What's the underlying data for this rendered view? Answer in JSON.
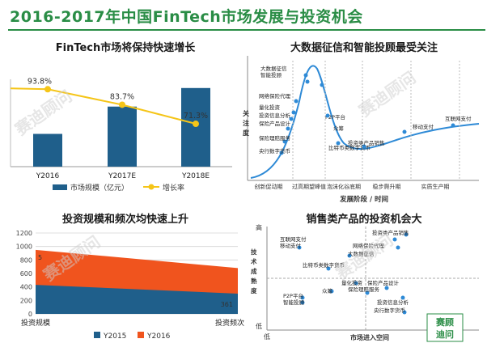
{
  "page": {
    "title": "2016-2017年中国FinTech市场发展与投资机会"
  },
  "watermark": {
    "text": "赛迪顾问"
  },
  "logo": {
    "line1": "赛顾",
    "line2": "迪问"
  },
  "colors": {
    "green": "#2a8d46",
    "blue": "#1f5f8b",
    "orange": "#f0541e",
    "yellow": "#f5c518",
    "ltblue": "#2e8ad6"
  },
  "chart_data": [
    {
      "id": "fintech_growth",
      "type": "bar",
      "title": "FinTech市场将保持快速增长",
      "categories": [
        "Y2016",
        "Y2017E",
        "Y2018E"
      ],
      "series": [
        {
          "name": "市场规模（亿元）",
          "kind": "bar",
          "values": [
            30,
            55,
            72
          ]
        },
        {
          "name": "增长率",
          "kind": "line",
          "values": [
            93.8,
            83.7,
            71.3
          ],
          "labels": [
            "93.8%",
            "83.7%",
            "71.3%"
          ]
        }
      ],
      "legend": [
        "市场规模（亿元）",
        "增长率"
      ]
    },
    {
      "id": "investment_area",
      "type": "area",
      "title": "投资规模和频次均快速上升",
      "categories": [
        "投资规模",
        "投资频次"
      ],
      "yticks": [
        0,
        200,
        400,
        600,
        800,
        1000,
        1200
      ],
      "ylim": [
        0,
        1200
      ],
      "series": [
        {
          "name": "Y2015",
          "values": [
            430,
            300
          ]
        },
        {
          "name": "Y2016",
          "values": [
            950,
            680
          ]
        }
      ],
      "annotations": [
        "5",
        "361"
      ],
      "legend": [
        "Y2015",
        "Y2016"
      ]
    }
  ],
  "hype": {
    "title": "大数据征信和智能投顾最受关注",
    "y_axis": "关注度",
    "x_axis": "发展阶段 / 时间",
    "points": [
      {
        "label": "大数据征信",
        "role": "top"
      },
      {
        "label": "智能投顾",
        "role": "top"
      },
      {
        "label": "网络保险代理",
        "role": "left"
      },
      {
        "label": "量化投资",
        "role": "left"
      },
      {
        "label": "投资信息分析",
        "role": "left"
      },
      {
        "label": "保险产品设计",
        "role": "left"
      },
      {
        "label": "保险理赔服务",
        "role": "left"
      },
      {
        "label": "央行数字货币",
        "role": "left"
      },
      {
        "label": "P2P平台",
        "role": "valley"
      },
      {
        "label": "众筹",
        "role": "valley"
      },
      {
        "label": "比特币类数字货币",
        "role": "valley"
      },
      {
        "label": "投资类产品销售",
        "role": "slope"
      },
      {
        "label": "移动支付",
        "role": "plateau"
      },
      {
        "label": "互联网支付",
        "role": "plateau"
      }
    ],
    "stages": [
      "创新促动期",
      "过高期望峰值",
      "泡沫化谷底期",
      "稳步爬升期",
      "实质生产期"
    ]
  },
  "matrix": {
    "title": "销售类产品的投资机会大",
    "y_axis": "技术成熟度",
    "x_axis": "市场进入空间",
    "y_high": "高",
    "y_low": "低",
    "x_low": "低",
    "points": [
      {
        "label": "互联网支付"
      },
      {
        "label": "移动支付"
      },
      {
        "label": "投资类产品销售"
      },
      {
        "label": "网络保险代理"
      },
      {
        "label": "大数据征信"
      },
      {
        "label": "比特币类数字货币"
      },
      {
        "label": "量化投资"
      },
      {
        "label": "P2P平台"
      },
      {
        "label": "众筹"
      },
      {
        "label": "投资信息分析"
      },
      {
        "label": "保险理赔服务"
      },
      {
        "label": "智能投顾"
      },
      {
        "label": "保险产品设计"
      },
      {
        "label": "央行数字货币"
      }
    ]
  }
}
